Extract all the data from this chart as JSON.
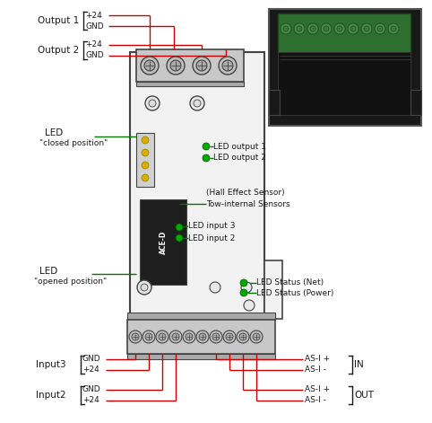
{
  "bg_color": "#ffffff",
  "red": "#cc0000",
  "green": "#007700",
  "black": "#1a1a1a",
  "gray": "#888888",
  "dev_fill": "#f2f2f2",
  "dev_outline": "#444444",
  "conn_fill": "#cccccc",
  "conn_outline": "#333333",
  "screw_fill": "#bbbbbb",
  "screw_inner": "#999999",
  "led_yellow": "#ddaa00",
  "led_green": "#00aa00",
  "chip_fill": "#222222",
  "labels": {
    "output1": "Output 1",
    "output2": "Output 2",
    "plus24": "+24",
    "gnd": "GND",
    "led_closed": "LED",
    "led_closed2": "\"closed position\"",
    "led_output1": "LED output 1",
    "led_output2": "LED output 2",
    "hall_effect": "(Hall Effect Sensor)",
    "two_internal": "Tow-internal Sensors",
    "led_input3": "LED input 3",
    "led_input2": "LED input 2",
    "led_opened": "LED",
    "led_opened2": "\"opened position\"",
    "led_status_net": "LED Status (Net)",
    "led_status_power": "LED Status (Power)",
    "input3": "Input3",
    "input2": "Input2",
    "asi_plus": "AS-I +",
    "asi_minus": "AS-I -",
    "in_label": "IN",
    "out_label": "OUT"
  }
}
